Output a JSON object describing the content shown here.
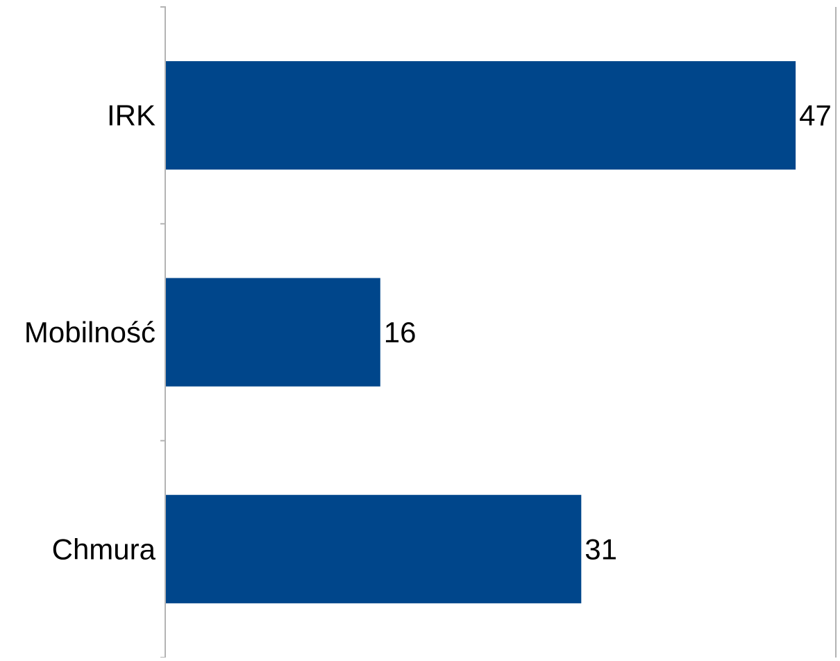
{
  "chart_data": {
    "type": "bar",
    "orientation": "horizontal",
    "categories": [
      "IRK",
      "Mobilność",
      "Chmura"
    ],
    "values": [
      47,
      16,
      31
    ],
    "data_labels": [
      "47",
      "16",
      "31"
    ],
    "title": "",
    "xlabel": "",
    "ylabel": "",
    "xlim": [
      0,
      50
    ],
    "grid": "vertical gridline at right edge only",
    "legend": "none",
    "bar_color": "#00468b",
    "axis_color": "#b3b3b3"
  }
}
